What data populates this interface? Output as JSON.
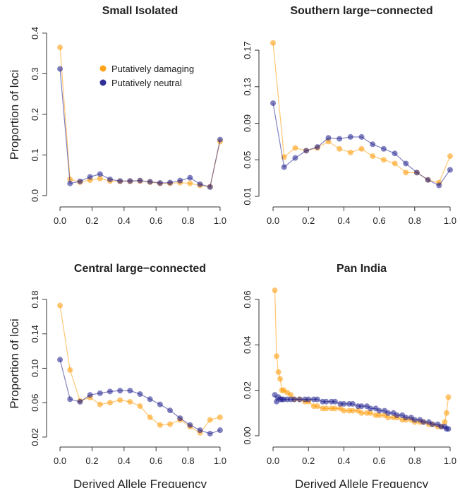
{
  "chart_data": [
    {
      "type": "line",
      "title": "Small Isolated",
      "ylabel": "Proportion of loci",
      "legend": "upper center",
      "x": [
        0,
        0.0625,
        0.125,
        0.1875,
        0.25,
        0.3125,
        0.375,
        0.4375,
        0.5,
        0.5625,
        0.625,
        0.6875,
        0.75,
        0.8125,
        0.875,
        0.9375,
        1
      ],
      "series": [
        {
          "name": "Putatively damaging",
          "color": "#ff9900",
          "values": [
            0.365,
            0.04,
            0.033,
            0.038,
            0.042,
            0.036,
            0.035,
            0.035,
            0.036,
            0.033,
            0.03,
            0.03,
            0.032,
            0.03,
            0.025,
            0.022,
            0.133
          ]
        },
        {
          "name": "Putatively neutral",
          "color": "#1a1a8c",
          "values": [
            0.312,
            0.03,
            0.035,
            0.046,
            0.053,
            0.04,
            0.036,
            0.036,
            0.037,
            0.034,
            0.031,
            0.032,
            0.037,
            0.044,
            0.028,
            0.021,
            0.138
          ]
        }
      ],
      "xlim": [
        -0.04,
        1.04
      ],
      "ylim": [
        -0.014,
        0.412
      ],
      "xticks": [
        {
          "value": 0,
          "label": "0.0"
        },
        0.2,
        0.4,
        0.6,
        0.8,
        {
          "value": 1,
          "label": "1.0"
        }
      ],
      "yticks": [
        {
          "value": 0,
          "label": "0.0"
        },
        0.1,
        0.2,
        0.3,
        0.4
      ]
    },
    {
      "type": "line",
      "title": "Southern large−connected",
      "x": [
        0,
        0.0625,
        0.125,
        0.1875,
        0.25,
        0.3125,
        0.375,
        0.4375,
        0.5,
        0.5625,
        0.625,
        0.6875,
        0.75,
        0.8125,
        0.875,
        0.9375,
        1
      ],
      "series": [
        {
          "color": "#ff9900",
          "values": [
            0.178,
            0.053,
            0.063,
            0.06,
            0.063,
            0.07,
            0.062,
            0.058,
            0.062,
            0.054,
            0.05,
            0.046,
            0.036,
            0.036,
            0.028,
            0.025,
            0.054
          ]
        },
        {
          "color": "#1a1a8c",
          "values": [
            0.112,
            0.042,
            0.052,
            0.06,
            0.064,
            0.074,
            0.073,
            0.075,
            0.075,
            0.067,
            0.062,
            0.057,
            0.046,
            0.036,
            0.028,
            0.022,
            0.039
          ]
        }
      ],
      "xlim": [
        -0.04,
        1.04
      ],
      "ylim": [
        0.0046,
        0.194
      ],
      "xticks": [
        {
          "value": 0,
          "label": "0.0"
        },
        0.2,
        0.4,
        0.6,
        0.8,
        {
          "value": 1,
          "label": "1.0"
        }
      ],
      "yticks": [
        0.01,
        0.05,
        0.09,
        0.13,
        0.17
      ]
    },
    {
      "type": "line",
      "title": "Central large−connected",
      "ylabel": "Proportion of loci",
      "xlabel": "Derived Allele Frequency",
      "x": [
        0,
        0.0625,
        0.125,
        0.1875,
        0.25,
        0.3125,
        0.375,
        0.4375,
        0.5,
        0.5625,
        0.625,
        0.6875,
        0.75,
        0.8125,
        0.875,
        0.9375,
        1
      ],
      "series": [
        {
          "color": "#ff9900",
          "values": [
            0.173,
            0.098,
            0.062,
            0.066,
            0.058,
            0.06,
            0.063,
            0.061,
            0.056,
            0.043,
            0.034,
            0.035,
            0.04,
            0.032,
            0.025,
            0.04,
            0.043
          ]
        },
        {
          "color": "#1a1a8c",
          "values": [
            0.11,
            0.064,
            0.061,
            0.069,
            0.071,
            0.073,
            0.074,
            0.074,
            0.07,
            0.064,
            0.058,
            0.051,
            0.042,
            0.034,
            0.028,
            0.024,
            0.028
          ]
        }
      ],
      "xlim": [
        -0.04,
        1.04
      ],
      "ylim": [
        0.015,
        0.1956
      ],
      "xticks": [
        {
          "value": 0,
          "label": "0.0"
        },
        0.2,
        0.4,
        0.6,
        0.8,
        {
          "value": 1,
          "label": "1.0"
        }
      ],
      "yticks": [
        0.02,
        0.06,
        {
          "value": 0.1,
          "label": "0.10"
        },
        0.14,
        0.18
      ]
    },
    {
      "type": "line",
      "title": "Pan India",
      "xlabel": "Derived Allele Frequency",
      "x": [
        0.01,
        0.02,
        0.03,
        0.04,
        0.05,
        0.06,
        0.08,
        0.1,
        0.12,
        0.15,
        0.18,
        0.2,
        0.23,
        0.25,
        0.28,
        0.3,
        0.33,
        0.35,
        0.38,
        0.4,
        0.43,
        0.45,
        0.48,
        0.5,
        0.53,
        0.55,
        0.58,
        0.6,
        0.63,
        0.65,
        0.68,
        0.7,
        0.73,
        0.75,
        0.78,
        0.8,
        0.83,
        0.85,
        0.88,
        0.9,
        0.93,
        0.95,
        0.97,
        0.98,
        0.99
      ],
      "series": [
        {
          "color": "#ff9900",
          "values": [
            0.064,
            0.035,
            0.028,
            0.025,
            0.02,
            0.02,
            0.019,
            0.018,
            0.016,
            0.016,
            0.015,
            0.015,
            0.013,
            0.013,
            0.012,
            0.012,
            0.012,
            0.012,
            0.012,
            0.011,
            0.011,
            0.011,
            0.011,
            0.01,
            0.01,
            0.01,
            0.009,
            0.009,
            0.009,
            0.008,
            0.008,
            0.008,
            0.007,
            0.007,
            0.007,
            0.006,
            0.006,
            0.006,
            0.005,
            0.005,
            0.004,
            0.004,
            0.006,
            0.01,
            0.017
          ]
        },
        {
          "color": "#1a1a8c",
          "values": [
            0.018,
            0.015,
            0.017,
            0.016,
            0.016,
            0.016,
            0.016,
            0.016,
            0.016,
            0.016,
            0.016,
            0.016,
            0.016,
            0.016,
            0.015,
            0.015,
            0.015,
            0.015,
            0.014,
            0.014,
            0.014,
            0.014,
            0.013,
            0.013,
            0.013,
            0.012,
            0.012,
            0.011,
            0.011,
            0.01,
            0.01,
            0.009,
            0.009,
            0.008,
            0.008,
            0.007,
            0.007,
            0.006,
            0.006,
            0.005,
            0.005,
            0.004,
            0.004,
            0.003,
            0.003
          ]
        }
      ],
      "xlim": [
        -0.04,
        1.04
      ],
      "ylim": [
        -0.0025,
        0.0659
      ],
      "xticks": [
        {
          "value": 0,
          "label": "0.0"
        },
        0.2,
        0.4,
        0.6,
        0.8,
        {
          "value": 1,
          "label": "1.0"
        }
      ],
      "yticks": [
        {
          "value": 0,
          "label": "0.00"
        },
        0.02,
        0.04,
        0.06
      ]
    }
  ]
}
